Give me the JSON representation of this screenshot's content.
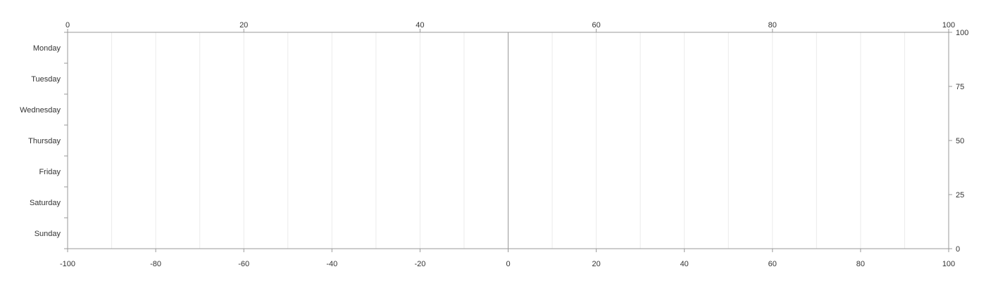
{
  "chart_data": {
    "type": "bar",
    "orientation": "horizontal",
    "categories": [
      "Monday",
      "Tuesday",
      "Wednesday",
      "Thursday",
      "Friday",
      "Saturday",
      "Sunday"
    ],
    "series": [],
    "x_bottom": {
      "range": [
        -100,
        100
      ],
      "ticks": [
        -100,
        -80,
        -60,
        -40,
        -20,
        0,
        20,
        40,
        60,
        80,
        100
      ],
      "tick_labels": [
        "-100",
        "-80",
        "-60",
        "-40",
        "-20",
        "0",
        "20",
        "40",
        "60",
        "80",
        "100"
      ],
      "minor_grid_step": 10
    },
    "x_top": {
      "range": [
        0,
        100
      ],
      "ticks": [
        0,
        20,
        40,
        60,
        80,
        100
      ],
      "tick_labels": [
        "0",
        "20",
        "40",
        "60",
        "80",
        "100"
      ]
    },
    "y_right": {
      "range": [
        0,
        100
      ],
      "ticks": [
        0,
        25,
        50,
        75,
        100
      ],
      "tick_labels": [
        "0",
        "25",
        "50",
        "75",
        "100"
      ]
    },
    "grid": true,
    "title": "",
    "xlabel": "",
    "ylabel": "",
    "colors": {
      "axis": "#999999",
      "grid": "#ebebeb",
      "zero_line": "#999999",
      "text": "#333333"
    }
  }
}
